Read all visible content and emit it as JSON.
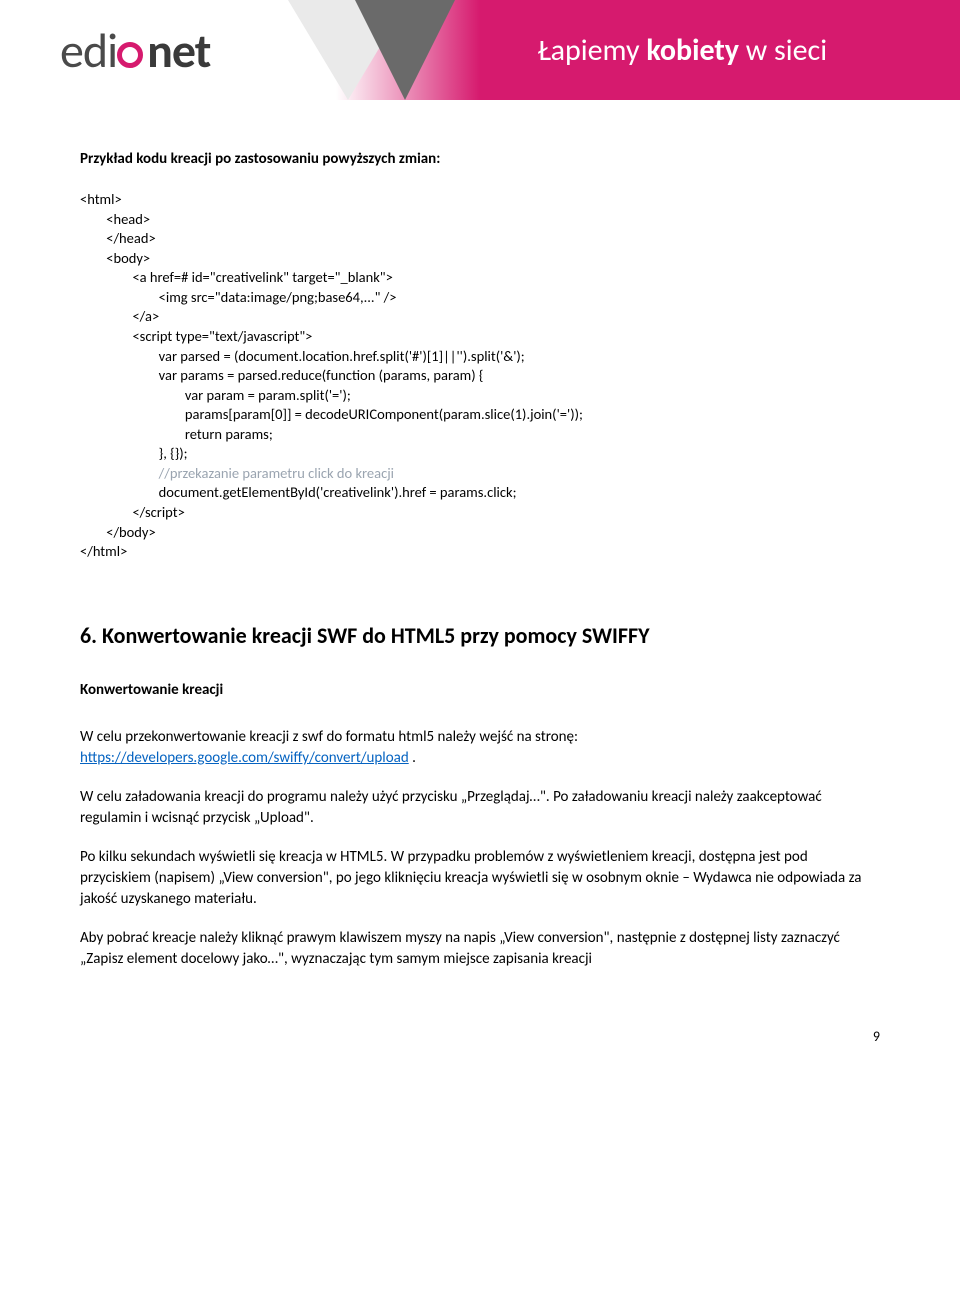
{
  "banner": {
    "logo_prefix": "edi",
    "logo_suffix": "net",
    "tagline_light1": "Łapiemy ",
    "tagline_bold": "kobiety",
    "tagline_light2": " w sieci"
  },
  "doc": {
    "intro": "Przykład kodu kreacji po zastosowaniu powyższych zmian:",
    "code": {
      "l1": "<html>",
      "l2": "        <head>",
      "l3": "        </head>",
      "l4": "        <body>",
      "l5": "                <a href=# id=\"creativelink\" target=\"_blank\">",
      "l6": "                        <img src=\"data:image/png;base64,...\" />",
      "l7": "                </a>",
      "l8": "                <script type=\"text/javascript\">",
      "l9": "                        var parsed = (document.location.href.split('#')[1]||'').split('&');",
      "l10": "                        var params = parsed.reduce(function (params, param) {",
      "l11": "                                var param = param.split('=');",
      "l12": "                                params[param[0]] = decodeURIComponent(param.slice(1).join('='));",
      "l13": "                                return params;",
      "l14": "                        }, {});",
      "l15_comment": "                        //przekazanie parametru click do kreacji",
      "l16": "                        document.getElementById('creativelink').href = params.click;",
      "l17": "                </script>",
      "l18": "        </body>",
      "l19": "</html>"
    },
    "h2": "6. Konwertowanie kreacji SWF do HTML5 przy pomocy SWIFFY",
    "h3": "Konwertowanie kreacji",
    "p1_a": "W celu przekonwertowanie kreacji z swf do formatu html5 należy wejść na stronę:",
    "p1_link": "https://developers.google.com/swiffy/convert/upload",
    "p1_b": " .",
    "p2": "W celu załadowania kreacji do programu należy użyć przycisku „Przeglądaj…\". Po załadowaniu kreacji należy zaakceptować regulamin i wcisnąć przycisk „Upload\".",
    "p3": "Po kilku sekundach wyświetli się kreacja w HTML5. W przypadku problemów z wyświetleniem kreacji, dostępna jest pod przyciskiem (napisem) „View conversion\", po jego kliknięciu kreacja wyświetli się w osobnym oknie – Wydawca nie odpowiada za jakość uzyskanego materiału.",
    "p4": "Aby pobrać kreacje należy kliknąć prawym klawiszem myszy na napis „View conversion\", następnie z dostępnej listy zaznaczyć „Zapisz element docelowy jako…\", wyznaczając tym samym miejsce zapisania kreacji",
    "page": "9"
  },
  "colors": {
    "brand_pink": "#d61a6e",
    "link": "#0563c1",
    "comment_gray": "#9aa4b0",
    "text": "#000000"
  }
}
